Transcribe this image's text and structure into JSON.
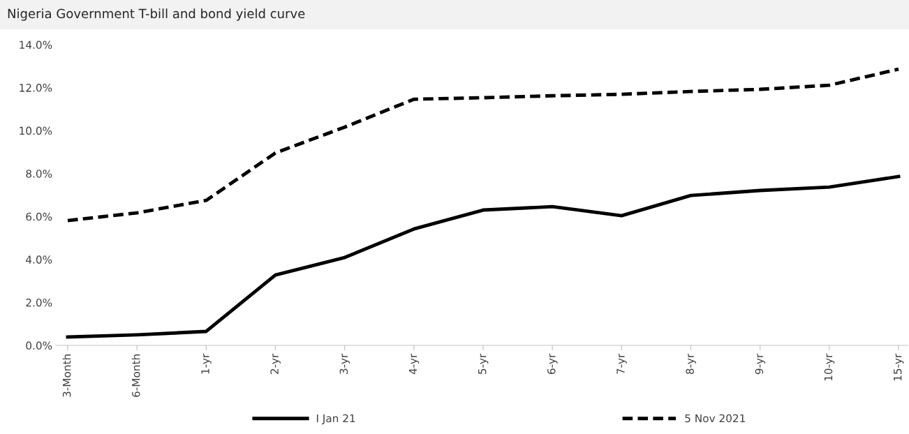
{
  "chart_data": {
    "type": "line",
    "title": "Nigeria Government T-bill and bond yield curve",
    "categories": [
      "3-Month",
      "6-Month",
      "1-yr",
      "2-yr",
      "3-yr",
      "4-yr",
      "5-yr",
      "6-yr",
      "7-yr",
      "8-yr",
      "9-yr",
      "10-yr",
      "15-yr"
    ],
    "series": [
      {
        "name": "I Jan 21",
        "color": "#000000",
        "line_style": "solid",
        "values": [
          0.39,
          0.49,
          0.65,
          3.28,
          4.09,
          5.42,
          6.3,
          6.46,
          6.04,
          6.98,
          7.21,
          7.37,
          7.86
        ]
      },
      {
        "name": "5 Nov 2021",
        "color": "#000000",
        "line_style": "dashed",
        "values": [
          5.81,
          6.17,
          6.75,
          8.96,
          10.16,
          11.46,
          11.53,
          11.62,
          11.69,
          11.82,
          11.92,
          12.11,
          12.86
        ]
      }
    ],
    "ylim": [
      0,
      14
    ],
    "yticks": [
      {
        "value": 0,
        "label": "0.0%"
      },
      {
        "value": 2,
        "label": "2.0%"
      },
      {
        "value": 4,
        "label": "4.0%"
      },
      {
        "value": 6,
        "label": "6.0%"
      },
      {
        "value": 8,
        "label": "8.0%"
      },
      {
        "value": 10,
        "label": "10.0%"
      },
      {
        "value": 12,
        "label": "12.0%"
      },
      {
        "value": 14,
        "label": "14.0%"
      }
    ],
    "grid": false,
    "legend": "bottom",
    "marker": "none"
  }
}
